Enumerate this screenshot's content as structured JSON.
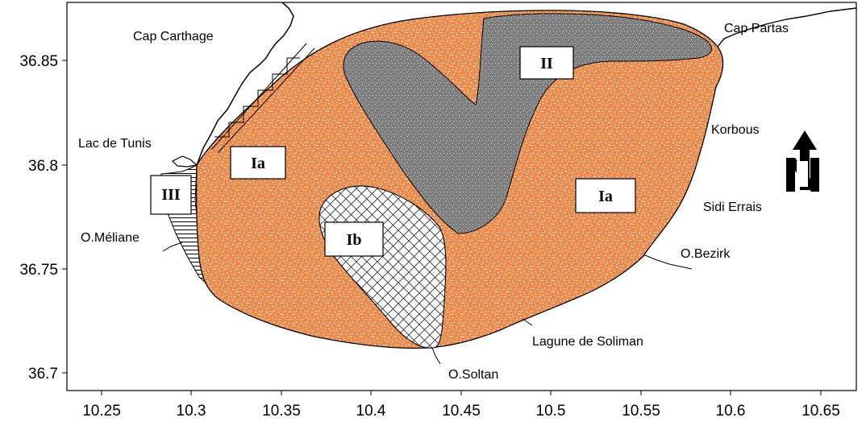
{
  "map": {
    "x_ticks": [
      "10.25",
      "10.3",
      "10.35",
      "10.4",
      "10.45",
      "10.5",
      "10.55",
      "10.6",
      "10.65"
    ],
    "y_ticks": [
      "36.85",
      "36.8",
      "36.75",
      "36.7"
    ],
    "place_labels": {
      "cap_carthage": "Cap Carthage",
      "cap_partas": "Cap Partas",
      "lac_de_tunis": "Lac de Tunis",
      "korbous": "Korbous",
      "sidi_errais": "Sidi Errais",
      "o_meliane": "O.Méliane",
      "o_bezirk": "O.Bezirk",
      "lagune_de_soliman": "Lagune de Soliman",
      "o_soltan": "O.Soltan"
    },
    "zones": {
      "zone_ia_west": "Ia",
      "zone_ia_east": "Ia",
      "zone_ib": "Ib",
      "zone_ii": "II",
      "zone_iii": "III"
    },
    "colors": {
      "zone_ia_fill": "#F08A4B",
      "zone_ii_fill": "#808080",
      "hatch": "#000000",
      "coastline": "#000000"
    },
    "north_arrow_icon": "north-arrow-icon"
  }
}
